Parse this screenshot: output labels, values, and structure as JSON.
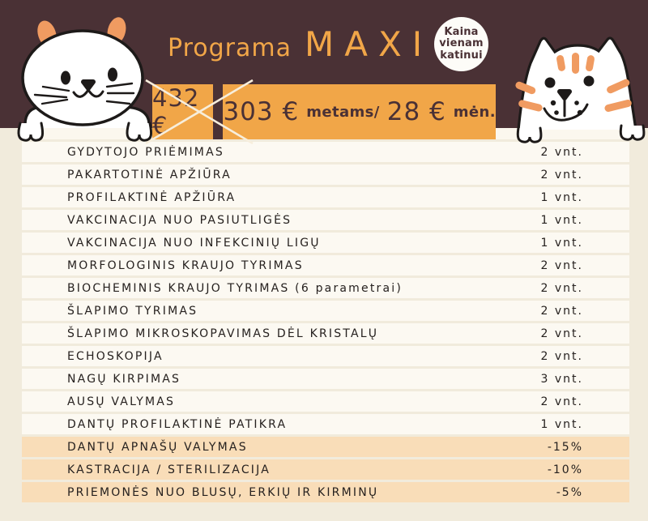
{
  "poster": {
    "title_prefix": "Programa",
    "title_main": "MAXI",
    "badge_lines": [
      "Kaina",
      "vienam",
      "katinui"
    ],
    "old_price": "432 €",
    "price_annual": "303 €",
    "price_annual_label": "metams/",
    "price_monthly": "28 €",
    "price_monthly_label": "mėn."
  },
  "services": {
    "rows": [
      {
        "label": "GYDYTOJO PRIĖMIMAS",
        "value": "2 vnt.",
        "highlight": false
      },
      {
        "label": "PAKARTOTINĖ APŽIŪRA",
        "value": "2 vnt.",
        "highlight": false
      },
      {
        "label": "PROFILAKTINĖ APŽIŪRA",
        "value": "1 vnt.",
        "highlight": false
      },
      {
        "label": "VAKCINACIJA NUO PASIUTLIGĖS",
        "value": "1 vnt.",
        "highlight": false
      },
      {
        "label": "VAKCINACIJA NUO INFEKCINIŲ LIGŲ",
        "value": "1 vnt.",
        "highlight": false
      },
      {
        "label": "MORFOLOGINIS KRAUJO TYRIMAS",
        "value": "2 vnt.",
        "highlight": false
      },
      {
        "label": "BIOCHEMINIS KRAUJO TYRIMAS (6 parametrai)",
        "value": "2 vnt.",
        "highlight": false
      },
      {
        "label": "ŠLAPIMO TYRIMAS",
        "value": "2 vnt.",
        "highlight": false
      },
      {
        "label": "ŠLAPIMO MIKROSKOPAVIMAS DĖL KRISTALŲ",
        "value": "2 vnt.",
        "highlight": false
      },
      {
        "label": "ECHOSKOPIJA",
        "value": "2 vnt.",
        "highlight": false
      },
      {
        "label": "NAGŲ KIRPIMAS",
        "value": "3 vnt.",
        "highlight": false
      },
      {
        "label": "AUSŲ VALYMAS",
        "value": "2 vnt.",
        "highlight": false
      },
      {
        "label": "DANTŲ PROFILAKTINĖ PATIKRA",
        "value": "1 vnt.",
        "highlight": false
      },
      {
        "label": "DANTŲ APNAŠŲ VALYMAS",
        "value": "-15%",
        "highlight": true
      },
      {
        "label": "KASTRACIJA / STERILIZACIJA",
        "value": "-10%",
        "highlight": true
      },
      {
        "label": "PRIEMONĖS NUO BLUSŲ, ERKIŲ IR KIRMINŲ",
        "value": "-5%",
        "highlight": true
      }
    ]
  },
  "colors": {
    "header_bg": "#4A3135",
    "accent": "#F1A648",
    "page_bg": "#F1EBDC",
    "row_bg": "#FCF9F2",
    "highlight_bg": "#F9DDB8",
    "ledge_bg": "#FBF7EE",
    "ink": "#26211F",
    "price_text": "#4A3135",
    "badge_bg": "#FDFCF8",
    "cross": "#F7EEDC",
    "cat_stripe": "#F09B61",
    "cat_outline": "#1D1A19"
  }
}
